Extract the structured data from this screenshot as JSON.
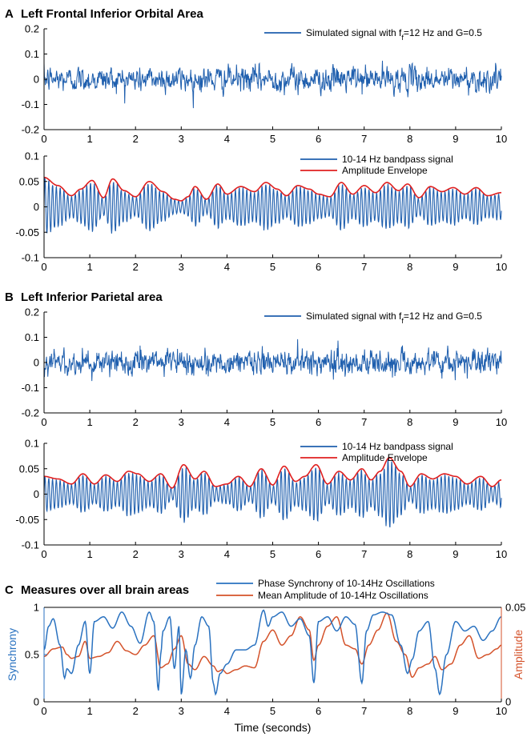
{
  "colors": {
    "signal": "#1f5fae",
    "envelope": "#e02020",
    "synchrony": "#2a72c0",
    "amplitude": "#d4522a",
    "axis": "#000000"
  },
  "chart_data": [
    {
      "type": "line",
      "panel": "A",
      "title": "Left Frontal Inferior Orbital Area",
      "xlim": [
        0,
        10
      ],
      "ylim": [
        -0.2,
        0.2
      ],
      "xticks": [
        0,
        1,
        2,
        3,
        4,
        5,
        6,
        7,
        8,
        9,
        10
      ],
      "yticks": [
        -0.2,
        -0.1,
        0,
        0.1,
        0.2
      ],
      "legend_placement": "top-right",
      "series": [
        {
          "name": "Simulated signal with f_f=12 Hz and G=0.5",
          "kind": "noise",
          "amplitude": 0.06,
          "peak_min": -0.16,
          "peak_max": 0.15
        }
      ]
    },
    {
      "type": "line",
      "panel": "A2",
      "xlim": [
        0,
        10
      ],
      "ylim": [
        -0.1,
        0.1
      ],
      "xticks": [
        0,
        1,
        2,
        3,
        4,
        5,
        6,
        7,
        8,
        9,
        10
      ],
      "yticks": [
        -0.1,
        -0.05,
        0,
        0.05,
        0.1
      ],
      "legend_placement": "top-right",
      "series": [
        {
          "name": "10-14 Hz bandpass signal",
          "kind": "bandpass",
          "frequency_hz": 12
        },
        {
          "name": "Amplitude Envelope",
          "kind": "envelope",
          "x": [
            0,
            0.3,
            0.6,
            0.8,
            1.05,
            1.3,
            1.5,
            1.75,
            2.0,
            2.3,
            2.6,
            2.85,
            3.0,
            3.15,
            3.3,
            3.55,
            3.8,
            4.0,
            4.3,
            4.6,
            4.85,
            5.1,
            5.3,
            5.55,
            5.8,
            6.0,
            6.25,
            6.5,
            6.75,
            7.0,
            7.25,
            7.5,
            7.75,
            7.95,
            8.2,
            8.45,
            8.7,
            8.95,
            9.2,
            9.45,
            9.7,
            10.0
          ],
          "y": [
            0.058,
            0.042,
            0.022,
            0.035,
            0.052,
            0.018,
            0.055,
            0.032,
            0.02,
            0.05,
            0.03,
            0.015,
            0.012,
            0.02,
            0.04,
            0.015,
            0.045,
            0.025,
            0.04,
            0.03,
            0.048,
            0.035,
            0.022,
            0.042,
            0.035,
            0.025,
            0.02,
            0.048,
            0.025,
            0.042,
            0.028,
            0.048,
            0.032,
            0.045,
            0.018,
            0.04,
            0.03,
            0.038,
            0.025,
            0.038,
            0.022,
            0.028
          ]
        }
      ]
    },
    {
      "type": "line",
      "panel": "B",
      "title": "Left Inferior Parietal area",
      "xlim": [
        0,
        10
      ],
      "ylim": [
        -0.2,
        0.2
      ],
      "xticks": [
        0,
        1,
        2,
        3,
        4,
        5,
        6,
        7,
        8,
        9,
        10
      ],
      "yticks": [
        -0.2,
        -0.1,
        0,
        0.1,
        0.2
      ],
      "legend_placement": "top-right",
      "series": [
        {
          "name": "Simulated signal with f_f=12 Hz and G=0.5",
          "kind": "noise",
          "amplitude": 0.06,
          "peak_min": -0.17,
          "peak_max": 0.14
        }
      ]
    },
    {
      "type": "line",
      "panel": "B2",
      "xlim": [
        0,
        10
      ],
      "ylim": [
        -0.1,
        0.1
      ],
      "xticks": [
        0,
        1,
        2,
        3,
        4,
        5,
        6,
        7,
        8,
        9,
        10
      ],
      "yticks": [
        -0.1,
        -0.05,
        0,
        0.05,
        0.1
      ],
      "legend_placement": "top-right",
      "series": [
        {
          "name": "10-14 Hz bandpass signal",
          "kind": "bandpass",
          "frequency_hz": 12
        },
        {
          "name": "Amplitude Envelope",
          "kind": "envelope",
          "x": [
            0,
            0.3,
            0.6,
            0.85,
            1.1,
            1.35,
            1.6,
            1.85,
            2.05,
            2.3,
            2.55,
            2.8,
            3.05,
            3.3,
            3.5,
            3.75,
            4.0,
            4.25,
            4.5,
            4.75,
            5.0,
            5.25,
            5.5,
            5.7,
            5.95,
            6.2,
            6.45,
            6.7,
            6.95,
            7.15,
            7.35,
            7.55,
            7.8,
            8.0,
            8.25,
            8.5,
            8.75,
            9.0,
            9.25,
            9.55,
            9.8,
            10.0
          ],
          "y": [
            0.035,
            0.03,
            0.02,
            0.04,
            0.02,
            0.038,
            0.025,
            0.045,
            0.04,
            0.025,
            0.04,
            0.012,
            0.058,
            0.03,
            0.045,
            0.015,
            0.02,
            0.035,
            0.015,
            0.05,
            0.018,
            0.055,
            0.025,
            0.035,
            0.058,
            0.02,
            0.045,
            0.028,
            0.05,
            0.028,
            0.045,
            0.072,
            0.045,
            0.015,
            0.04,
            0.03,
            0.04,
            0.035,
            0.02,
            0.035,
            0.015,
            0.028
          ]
        }
      ]
    },
    {
      "type": "line",
      "panel": "C",
      "title": "Measures over all brain areas",
      "xlabel": "Time (seconds)",
      "ylabel_left": "Synchrony",
      "ylabel_right": "Amplitude",
      "xlim": [
        0,
        10
      ],
      "ylim_left": [
        0,
        1
      ],
      "ylim_right": [
        0,
        0.05
      ],
      "xticks": [
        0,
        1,
        2,
        3,
        4,
        5,
        6,
        7,
        8,
        9,
        10
      ],
      "yticks_left": [
        0,
        0.5,
        1
      ],
      "yticks_right": [
        0,
        0.05
      ],
      "legend_placement": "top-right",
      "series": [
        {
          "name": "Phase Synchrony of 10-14Hz Oscillations",
          "axis": "left",
          "x": [
            0,
            0.1,
            0.2,
            0.35,
            0.45,
            0.5,
            0.6,
            0.75,
            0.9,
            1.0,
            1.1,
            1.3,
            1.5,
            1.7,
            1.9,
            2.1,
            2.3,
            2.4,
            2.5,
            2.55,
            2.6,
            2.75,
            2.85,
            2.95,
            3.0,
            3.1,
            3.2,
            3.3,
            3.45,
            3.6,
            3.7,
            3.75,
            3.85,
            4.0,
            4.2,
            4.4,
            4.6,
            4.8,
            4.9,
            5.0,
            5.2,
            5.4,
            5.6,
            5.8,
            5.9,
            6.0,
            6.2,
            6.4,
            6.6,
            6.8,
            6.95,
            7.05,
            7.2,
            7.4,
            7.6,
            7.8,
            7.95,
            8.05,
            8.2,
            8.4,
            8.55,
            8.65,
            8.8,
            9.0,
            9.2,
            9.4,
            9.6,
            9.8,
            10.0
          ],
          "y": [
            0.55,
            0.8,
            0.88,
            0.6,
            0.25,
            0.35,
            0.3,
            0.6,
            0.85,
            0.3,
            0.85,
            0.9,
            0.78,
            0.95,
            0.8,
            0.62,
            0.95,
            0.85,
            0.12,
            0.5,
            0.75,
            0.9,
            0.35,
            0.8,
            0.08,
            0.55,
            0.25,
            0.6,
            0.9,
            0.8,
            0.2,
            0.08,
            0.3,
            0.4,
            0.55,
            0.55,
            0.6,
            0.97,
            0.8,
            0.9,
            0.95,
            0.8,
            0.88,
            0.7,
            0.2,
            0.85,
            0.9,
            0.75,
            0.9,
            0.82,
            0.2,
            0.75,
            0.92,
            0.95,
            0.92,
            0.6,
            0.3,
            0.45,
            0.75,
            0.85,
            0.35,
            0.08,
            0.5,
            0.85,
            0.75,
            0.8,
            0.65,
            0.75,
            0.9
          ]
        },
        {
          "name": "Mean Amplitude of 10-14Hz Oscillations",
          "axis": "right",
          "x": [
            0,
            0.2,
            0.4,
            0.5,
            0.6,
            0.75,
            0.9,
            1.0,
            1.2,
            1.4,
            1.6,
            1.8,
            2.0,
            2.2,
            2.4,
            2.55,
            2.7,
            2.85,
            3.0,
            3.15,
            3.3,
            3.5,
            3.7,
            3.8,
            3.9,
            4.0,
            4.2,
            4.4,
            4.6,
            4.8,
            5.0,
            5.2,
            5.4,
            5.6,
            5.8,
            5.9,
            6.0,
            6.2,
            6.4,
            6.6,
            6.8,
            6.95,
            7.1,
            7.3,
            7.5,
            7.7,
            7.9,
            8.05,
            8.2,
            8.4,
            8.55,
            8.7,
            8.9,
            9.1,
            9.3,
            9.5,
            9.7,
            9.9,
            10.0
          ],
          "y": [
            0.024,
            0.028,
            0.029,
            0.025,
            0.023,
            0.024,
            0.032,
            0.023,
            0.024,
            0.026,
            0.032,
            0.027,
            0.025,
            0.03,
            0.035,
            0.018,
            0.02,
            0.028,
            0.035,
            0.02,
            0.017,
            0.024,
            0.019,
            0.016,
            0.017,
            0.015,
            0.017,
            0.019,
            0.018,
            0.032,
            0.038,
            0.03,
            0.035,
            0.045,
            0.038,
            0.022,
            0.03,
            0.04,
            0.045,
            0.03,
            0.028,
            0.02,
            0.03,
            0.038,
            0.047,
            0.032,
            0.025,
            0.013,
            0.018,
            0.02,
            0.024,
            0.017,
            0.02,
            0.03,
            0.035,
            0.023,
            0.025,
            0.028,
            0.03
          ]
        }
      ]
    }
  ]
}
